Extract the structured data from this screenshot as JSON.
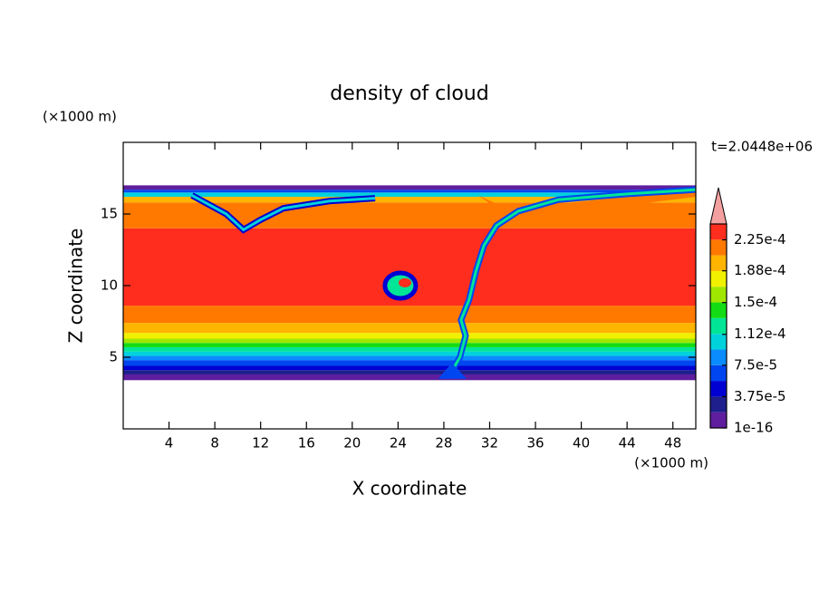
{
  "chart_data": {
    "type": "contour",
    "title": "density of cloud",
    "x_label": "X coordinate",
    "y_label": "Z coordinate",
    "x_unit": "(×1000 m)",
    "y_unit": "(×1000 m)",
    "time_label": "t=2.0448e+06",
    "xlim": [
      0,
      50
    ],
    "xticks": [
      4,
      8,
      12,
      16,
      20,
      24,
      28,
      32,
      36,
      40,
      44,
      48
    ],
    "ylim": [
      0,
      20
    ],
    "yticks": [
      5,
      10,
      15
    ],
    "colorbar": {
      "clim": [
        0,
        0.000244
      ],
      "ticks": [
        1e-16,
        {
          "value": 3.75e-05,
          "label": "3.75e-5"
        },
        {
          "value": 7.5e-05,
          "label": "7.5e-5"
        },
        {
          "value": 0.000112,
          "label": "1.12e-4"
        },
        {
          "value": 0.00015,
          "label": "1.5e-4"
        },
        {
          "value": 0.000188,
          "label": "1.88e-4"
        },
        {
          "value": 0.000225,
          "label": "2.25e-4"
        }
      ],
      "colors": [
        "#5f1e9e",
        "#1e1e8c",
        "#0000d2",
        "#0046f0",
        "#0a8cff",
        "#00d2dc",
        "#00e696",
        "#14dc14",
        "#a0e600",
        "#f0f000",
        "#ffb400",
        "#ff7800",
        "#ff2d1e"
      ],
      "extend_color": "#f5a0a0"
    }
  }
}
